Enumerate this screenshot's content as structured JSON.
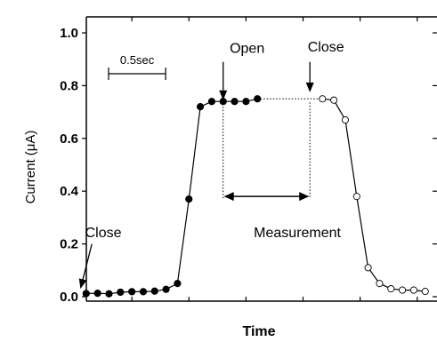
{
  "chart_data": {
    "type": "line",
    "xlabel": "Time",
    "ylabel": "Current (μA)",
    "ylim": [
      0.0,
      1.0
    ],
    "y_ticks": [
      {
        "value": 0.0,
        "label": "0.0"
      },
      {
        "value": 0.2,
        "label": "0.2"
      },
      {
        "value": 0.4,
        "label": "0.4"
      },
      {
        "value": 0.6,
        "label": "0.6"
      },
      {
        "value": 0.8,
        "label": "0.8"
      },
      {
        "value": 1.0,
        "label": "1.0"
      }
    ],
    "x_unit": "sec",
    "xlim": [
      0.0,
      3.15
    ],
    "x_ticks": [
      0.5,
      1.0,
      1.5,
      2.0,
      2.5,
      3.0
    ],
    "grid": false,
    "scale_bar": {
      "label": "0.5sec",
      "length": 0.5
    },
    "series": [
      {
        "name": "",
        "marker": "filled",
        "x": [
          0.1,
          0.2,
          0.3,
          0.4,
          0.5,
          0.6,
          0.7,
          0.8,
          0.9,
          1.0,
          1.1,
          1.2,
          1.3,
          1.4,
          1.5,
          1.6
        ],
        "y": [
          0.012,
          0.013,
          0.011,
          0.017,
          0.019,
          0.019,
          0.021,
          0.028,
          0.05,
          0.37,
          0.72,
          0.74,
          0.74,
          0.74,
          0.74,
          0.75
        ]
      },
      {
        "name": "",
        "marker": "open",
        "x": [
          2.17,
          2.27,
          2.37,
          2.47,
          2.57,
          2.67,
          2.77,
          2.87,
          2.97,
          3.07
        ],
        "y": [
          0.75,
          0.745,
          0.67,
          0.38,
          0.11,
          0.05,
          0.03,
          0.025,
          0.025,
          0.02
        ]
      }
    ],
    "dotted_link": {
      "x": [
        1.6,
        2.17
      ],
      "y": [
        0.75,
        0.75
      ]
    },
    "annotations": [
      {
        "text": "Close",
        "x": 0.25,
        "y": 0.245
      },
      {
        "text": "Open",
        "x": 1.51,
        "y": 0.945
      },
      {
        "text": "Close",
        "x": 2.2,
        "y": 0.95
      },
      {
        "text": "Measurement",
        "x": 1.95,
        "y": 0.245
      }
    ],
    "arrows": [
      {
        "x1": 0.15,
        "y1": 0.2,
        "x2": 0.05,
        "y2": 0.03
      },
      {
        "x1": 1.3,
        "y1": 0.89,
        "x2": 1.3,
        "y2": 0.745
      },
      {
        "x1": 2.06,
        "y1": 0.89,
        "x2": 2.06,
        "y2": 0.775
      }
    ],
    "measurement": {
      "x_start": 1.3,
      "x_end": 2.06,
      "y": 0.38,
      "bracket_y_top": 0.72,
      "bracket_y_top_right": 0.75
    }
  }
}
